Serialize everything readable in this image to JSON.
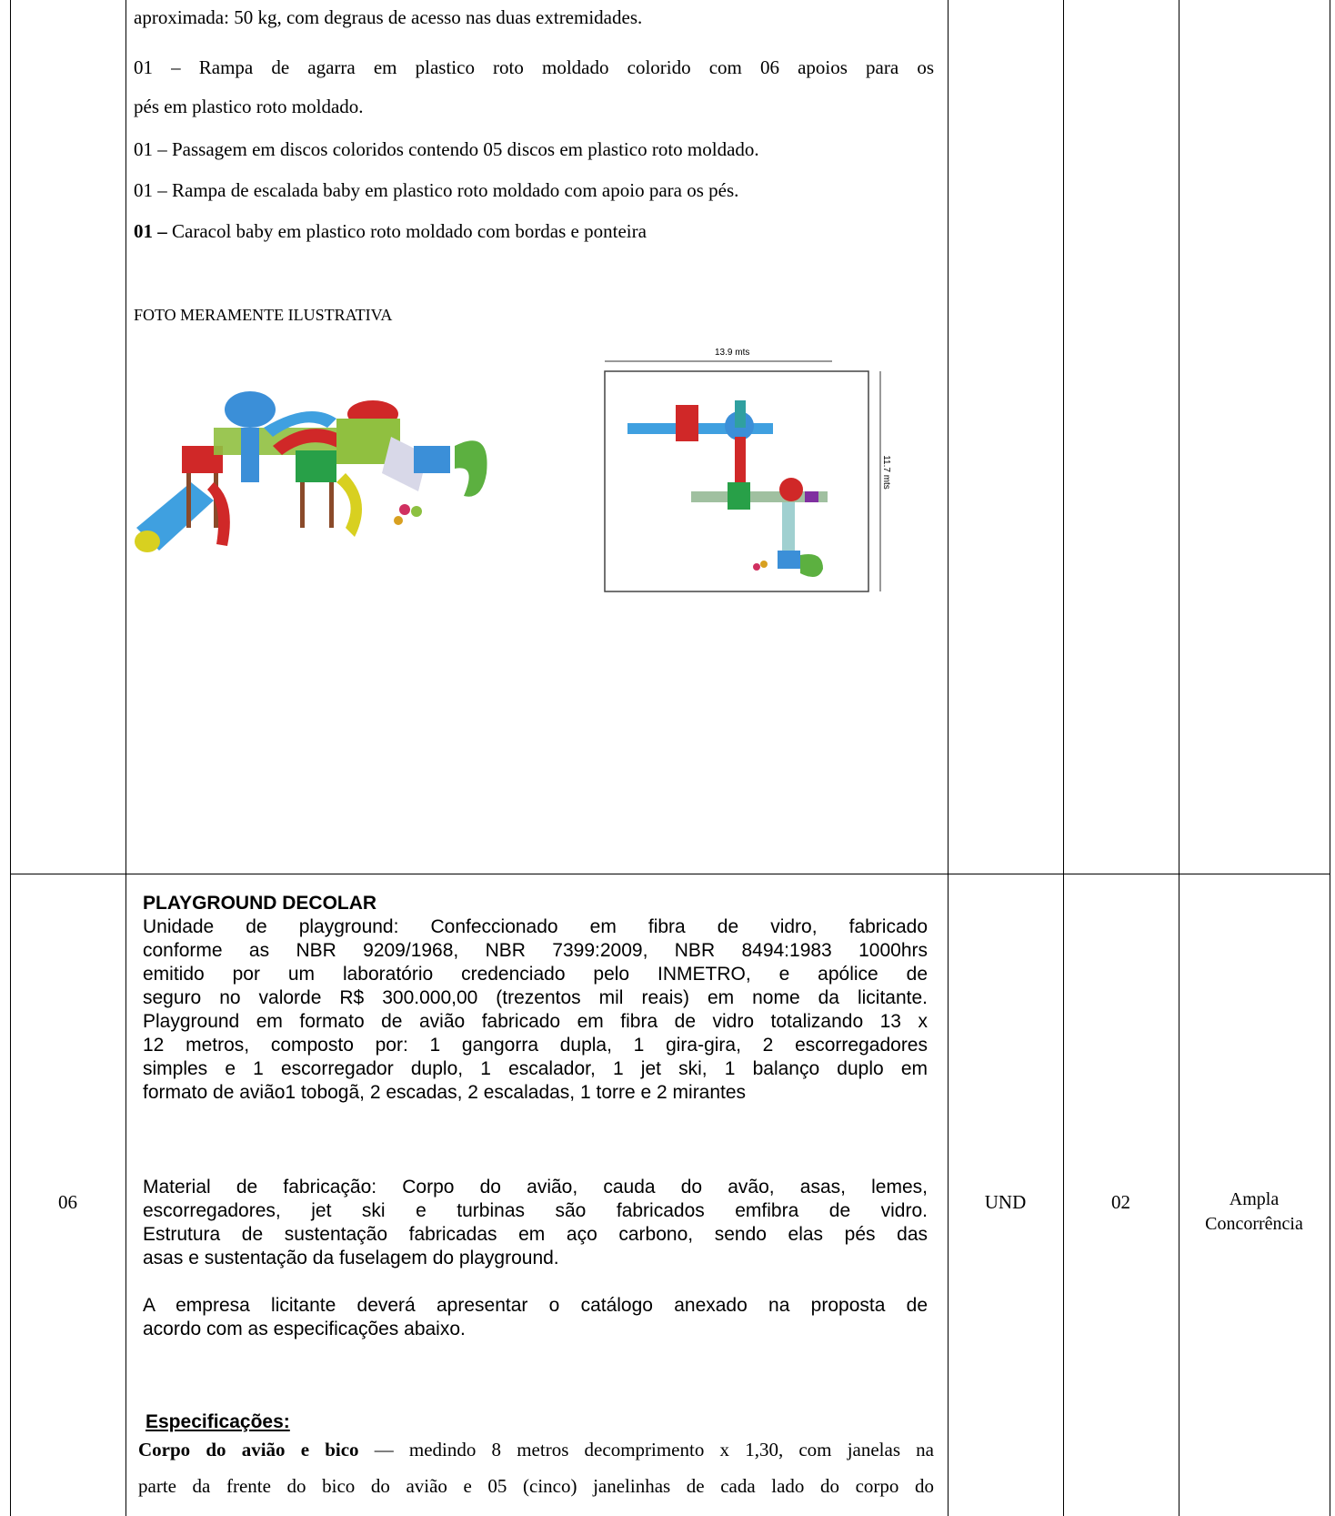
{
  "table": {
    "rows": [
      {
        "description": {
          "lines": [
            "aproximada: 50 kg, com degraus de acesso nas duas extremidades.",
            "01 – Rampa de agarra em plastico roto moldado colorido com 06 apoios para os",
            "pés em plastico roto moldado.",
            "01 – Passagem em discos coloridos contendo 05 discos em plastico roto moldado.",
            "01 – Rampa de escalada baby em plastico roto moldado com apoio para os pés."
          ],
          "last_line": {
            "bold": "01 –",
            "text": " Caracol baby em plastico roto moldado com bordas e ponteira"
          },
          "photo_caption": "FOTO MERAMENTE ILUSTRATIVA",
          "plan_width_label": "13.9 mts",
          "plan_height_label": "11.7 mts"
        }
      },
      {
        "item": "06",
        "description": {
          "title": "PLAYGROUND DECOLAR",
          "paragraph_1": [
            "Unidade de playground: Confeccionado em fibra de vidro, fabricado",
            "conforme as NBR 9209/1968, NBR 7399:2009, NBR 8494:1983 1000hrs",
            "emitido por um laboratório credenciado pelo INMETRO, e apólice de",
            "seguro no valorde R$ 300.000,00 (trezentos mil reais) em nome da licitante.",
            "Playground em formato de avião fabricado em fibra de vidro totalizando 13 x",
            "12 metros, composto por: 1 gangorra dupla, 1 gira-gira, 2 escorregadores",
            "simples e 1 escorregador duplo, 1 escalador, 1 jet ski, 1 balanço duplo em",
            "formato de avião1 tobogã, 2 escadas, 2 escaladas, 1 torre e 2 mirantes"
          ],
          "paragraph_2": [
            "Material de fabricação: Corpo do avião, cauda do avão, asas, lemes,",
            "escorregadores, jet ski e turbinas são fabricados emfibra de vidro.",
            "Estrutura de sustentação fabricadas em aço carbono, sendo elas pés das",
            "asas e sustentação da fuselagem do playground."
          ],
          "paragraph_3": [
            "A empresa licitante deverá apresentar o catálogo anexado na proposta de",
            "acordo com as especificações abaixo."
          ],
          "spec_heading": "Especificações:",
          "spec_bold": "Corpo do avião e bico",
          "spec_lines": [
            " — medindo 8 metros decomprimento x 1,30, com janelas na",
            "parte da frente do bico do avião e 05 (cinco) janelinhas de cada lado do corpo do"
          ]
        },
        "unit": "UND",
        "quantity": "02",
        "category": [
          "Ampla",
          "Concorrência"
        ]
      }
    ]
  }
}
